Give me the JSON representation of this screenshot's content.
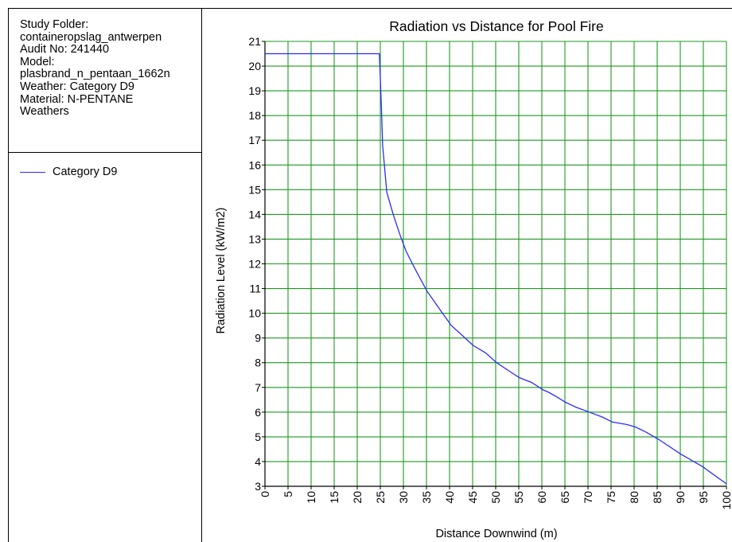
{
  "info": {
    "lines": [
      "Study Folder:",
      "containeropslag_antwerpen",
      "Audit No: 241440",
      "Model:",
      "plasbrand_n_pentaan_1662n",
      "Weather: Category D9",
      "Material: N-PENTANE",
      "Weathers"
    ]
  },
  "legend": {
    "label": "Category D9"
  },
  "chart_data": {
    "type": "line",
    "title": "Radiation vs Distance for Pool Fire",
    "xlabel": "Distance Downwind (m)",
    "ylabel": "Radiation Level (kW/m2)",
    "xlim": [
      0,
      100
    ],
    "ylim": [
      3,
      21
    ],
    "xticks": [
      "0",
      "5",
      "10",
      "15",
      "20",
      "25",
      "30",
      "35",
      "40",
      "45",
      "50",
      "55",
      "60",
      "65",
      "70",
      "75",
      "80",
      "85",
      "90",
      "95",
      "100"
    ],
    "yticks": [
      "3",
      "4",
      "5",
      "6",
      "7",
      "8",
      "9",
      "10",
      "11",
      "12",
      "13",
      "14",
      "15",
      "16",
      "17",
      "18",
      "19",
      "20",
      "21"
    ],
    "grid": true,
    "grid_color": "#1e9a1e",
    "series": [
      {
        "name": "Category D9",
        "color": "#2a2aff",
        "x": [
          0,
          24.8,
          25.2,
          25.5,
          26.4,
          27.8,
          29.2,
          30.6,
          32.8,
          35.1,
          38.1,
          40.4,
          42.8,
          45.1,
          47.8,
          50.2,
          52.6,
          55.1,
          57.8,
          60.3,
          61.5,
          63.4,
          65.1,
          67.4,
          70.3,
          73.1,
          75.3,
          78.4,
          80.3,
          82.5,
          85.3,
          90.1,
          94.8,
          100
        ],
        "y": [
          20.5,
          20.5,
          18.5,
          16.8,
          14.9,
          14.0,
          13.2,
          12.5,
          11.7,
          10.9,
          10.1,
          9.5,
          9.1,
          8.7,
          8.4,
          8.0,
          7.7,
          7.4,
          7.2,
          6.9,
          6.8,
          6.6,
          6.4,
          6.2,
          6.0,
          5.8,
          5.6,
          5.5,
          5.4,
          5.2,
          4.9,
          4.3,
          3.8,
          3.1
        ]
      }
    ]
  }
}
